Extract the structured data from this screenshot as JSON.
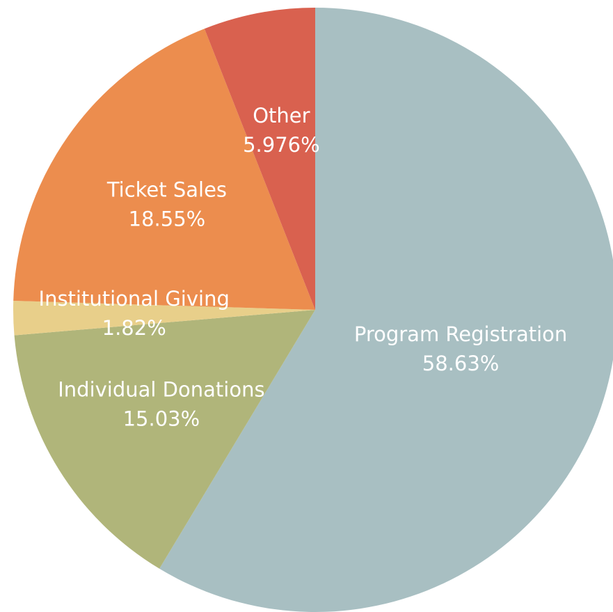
{
  "chart_data": {
    "type": "pie",
    "categories": [
      "Program Registration",
      "Individual Donations",
      "Institutional Giving",
      "Ticket Sales",
      "Other"
    ],
    "values": [
      58.63,
      15.03,
      1.82,
      18.55,
      5.976
    ],
    "value_labels": [
      "58.63%",
      "15.03%",
      "1.82%",
      "18.55%",
      "5.976%"
    ],
    "colors": [
      "#a8bfc2",
      "#b0b57a",
      "#e8cf8a",
      "#ec8d4e",
      "#d9614f"
    ]
  }
}
